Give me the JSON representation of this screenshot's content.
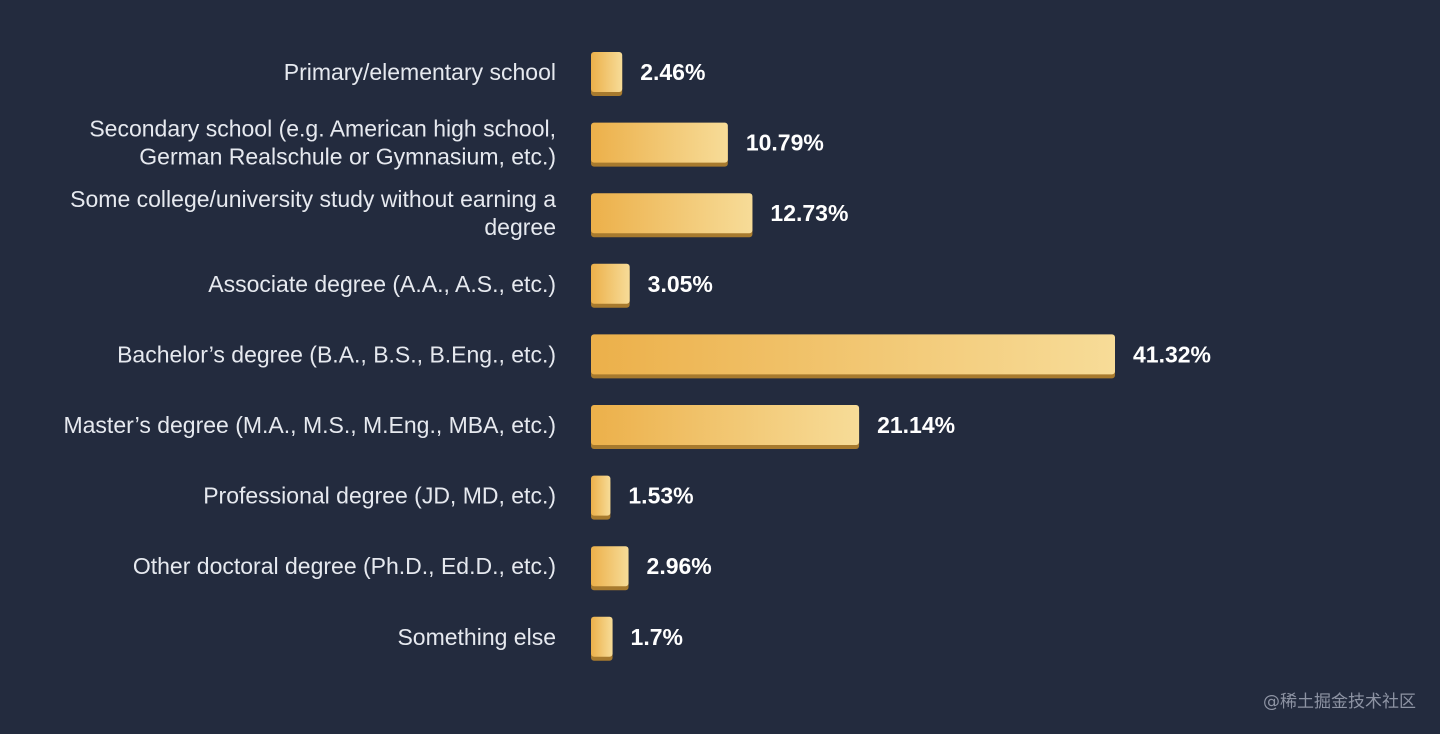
{
  "chart_data": {
    "type": "bar",
    "orientation": "horizontal",
    "categories": [
      [
        "Primary/elementary school"
      ],
      [
        "Secondary school (e.g. American high school,",
        "German Realschule or Gymnasium, etc.)"
      ],
      [
        "Some college/university study without earning a",
        "degree"
      ],
      [
        "Associate degree (A.A., A.S., etc.)"
      ],
      [
        "Bachelor’s degree (B.A., B.S., B.Eng., etc.)"
      ],
      [
        "Master’s degree (M.A., M.S., M.Eng., MBA, etc.)"
      ],
      [
        "Professional degree (JD, MD, etc.)"
      ],
      [
        "Other doctoral degree (Ph.D., Ed.D., etc.)"
      ],
      [
        "Something else"
      ]
    ],
    "values": [
      2.46,
      10.79,
      12.73,
      3.05,
      41.32,
      21.14,
      1.53,
      2.96,
      1.7
    ],
    "value_labels": [
      "2.46%",
      "10.79%",
      "12.73%",
      "3.05%",
      "41.32%",
      "21.14%",
      "1.53%",
      "2.96%",
      "1.7%"
    ],
    "title": "",
    "xlabel": "",
    "ylabel": "",
    "unit": "%",
    "grid": false,
    "legend": "none"
  },
  "colors": {
    "background": "#232b3e",
    "bar_start": "#ecb04a",
    "bar_end": "#f7dc98",
    "bar_shadow": "#a77a2e",
    "label_text": "#e6e9ef",
    "value_text": "#ffffff",
    "watermark_text": "#8d93a3"
  },
  "watermark": "@稀土掘金技术社区"
}
